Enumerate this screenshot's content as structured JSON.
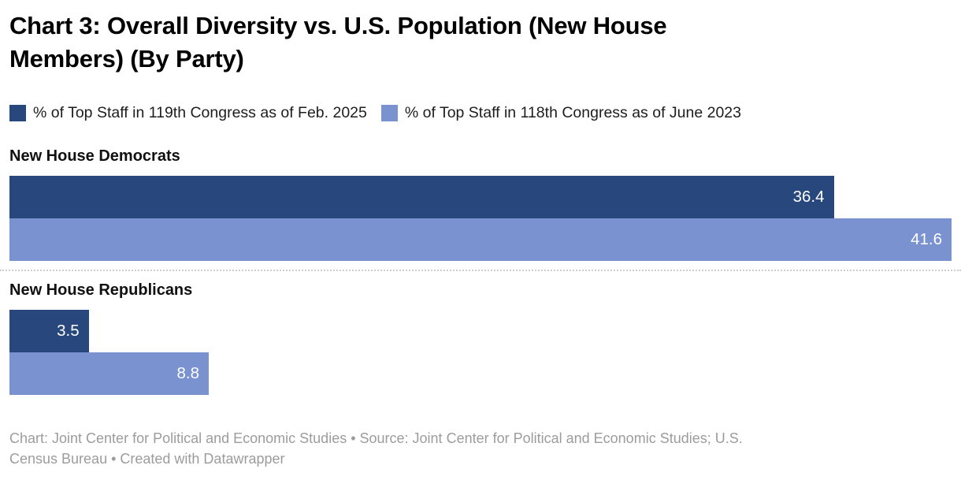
{
  "title": {
    "full": "Chart 3: Overall Diversity vs. U.S. Population (New House Members) (By Party)",
    "lines": [
      "Chart 3: Overall Diversity vs. U.S. Population (New House",
      "Members) (By Party)"
    ]
  },
  "legend": {
    "items": [
      {
        "label": "% of Top Staff in 119th Congress as of Feb. 2025",
        "color": "#27477d"
      },
      {
        "label": "% of Top Staff in 118th Congress as of June 2023",
        "color": "#7a92d0"
      }
    ]
  },
  "chart_data": {
    "type": "bar",
    "orientation": "horizontal",
    "title": "Chart 3: Overall Diversity vs. U.S. Population (New House Members) (By Party)",
    "categories": [
      "New House Democrats",
      "New House Republicans"
    ],
    "series": [
      {
        "name": "% of Top Staff in 119th Congress as of Feb. 2025",
        "color": "#27477d",
        "values": [
          36.4,
          3.5
        ]
      },
      {
        "name": "% of Top Staff in 118th Congress as of June 2023",
        "color": "#7a92d0",
        "values": [
          41.6,
          8.8
        ]
      }
    ],
    "xlim": [
      0,
      41.6
    ],
    "value_labels": true,
    "legend_position": "top",
    "grid": false,
    "group_separator": true
  },
  "footer": {
    "full": "Chart: Joint Center for Political and Economic Studies • Source: Joint Center for Political and Economic Studies; U.S. Census Bureau • Created with Datawrapper",
    "lines": [
      "Chart: Joint Center for Political and Economic Studies • Source: Joint Center for Political and Economic Studies; U.S.",
      "Census Bureau • Created with Datawrapper"
    ]
  },
  "colors": {
    "series_119th": "#27477d",
    "series_118th": "#7a92d0",
    "separator": "#cccccc",
    "footer_text": "#9c9c9c",
    "title_text": "#000000",
    "value_label_text": "#ffffff"
  }
}
